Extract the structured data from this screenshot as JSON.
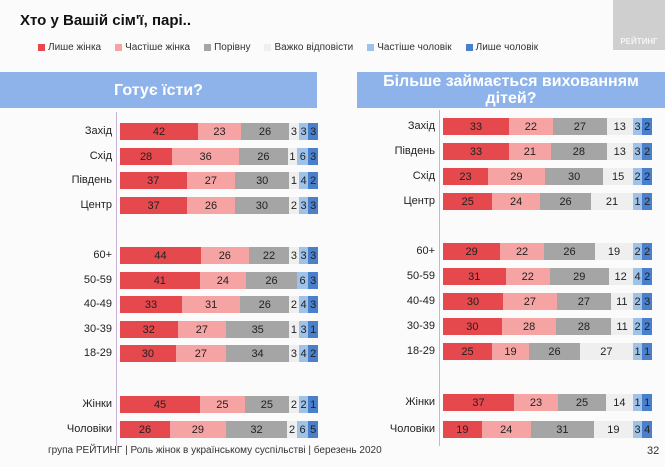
{
  "title": "Хто у Вашій сім'ї, парі..",
  "logo": "РЕЙТИНГ",
  "footer": "група РЕЙТИНГ | Роль жінок в українському суспільстві | березень 2020",
  "page_number": "32",
  "chart_data": [
    {
      "type": "bar",
      "stacked": true,
      "orientation": "horizontal",
      "title": "Готує їсти?",
      "legend": [
        "Лише жінка",
        "Частіше  жінка",
        "Порівну",
        "Важко відповісти",
        "Частіше  чоловік",
        "Лише чоловік"
      ],
      "colors": [
        "#e5484d",
        "#f6a3a3",
        "#a5a5a5",
        "#efefef",
        "#9fc2e8",
        "#4a7fcb"
      ],
      "categories": [
        "Захід",
        "Схід",
        "Південь",
        "Центр",
        "60+",
        "50-59",
        "40-49",
        "30-39",
        "18-29",
        "Жінки",
        "Чоловіки"
      ],
      "values": [
        [
          42,
          23,
          26,
          3,
          3,
          3
        ],
        [
          28,
          36,
          26,
          1,
          6,
          3
        ],
        [
          37,
          27,
          30,
          1,
          4,
          2
        ],
        [
          37,
          26,
          30,
          2,
          3,
          3
        ],
        [
          44,
          26,
          22,
          3,
          3,
          3
        ],
        [
          41,
          24,
          26,
          0,
          6,
          3
        ],
        [
          33,
          31,
          26,
          2,
          4,
          3
        ],
        [
          32,
          27,
          35,
          1,
          3,
          1
        ],
        [
          30,
          27,
          34,
          3,
          4,
          2
        ],
        [
          45,
          25,
          25,
          2,
          2,
          1
        ],
        [
          26,
          29,
          32,
          2,
          6,
          5
        ]
      ]
    },
    {
      "type": "bar",
      "stacked": true,
      "orientation": "horizontal",
      "title": "Більше займається вихованням дітей?",
      "legend": [
        "Лише жінка",
        "Частіше  жінка",
        "Порівну",
        "Важко відповісти",
        "Частіше  чоловік",
        "Лише чоловік"
      ],
      "colors": [
        "#e5484d",
        "#f6a3a3",
        "#a5a5a5",
        "#efefef",
        "#9fc2e8",
        "#4a7fcb"
      ],
      "categories": [
        "Захід",
        "Південь",
        "Схід",
        "Центр",
        "60+",
        "50-59",
        "40-49",
        "30-39",
        "18-29",
        "Жінки",
        "Чоловіки"
      ],
      "values": [
        [
          33,
          22,
          27,
          13,
          3,
          2
        ],
        [
          33,
          21,
          28,
          13,
          3,
          2
        ],
        [
          23,
          29,
          30,
          15,
          2,
          2
        ],
        [
          25,
          24,
          26,
          21,
          1,
          2
        ],
        [
          29,
          22,
          26,
          19,
          2,
          2
        ],
        [
          31,
          22,
          29,
          12,
          4,
          2
        ],
        [
          30,
          27,
          27,
          11,
          2,
          3
        ],
        [
          30,
          28,
          28,
          11,
          2,
          2
        ],
        [
          25,
          19,
          26,
          27,
          1,
          1
        ],
        [
          37,
          23,
          25,
          14,
          1,
          1
        ],
        [
          19,
          24,
          31,
          19,
          3,
          4
        ]
      ]
    }
  ]
}
